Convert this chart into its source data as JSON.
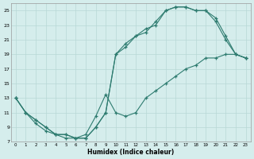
{
  "bg_color": "#d5edec",
  "grid_color": "#b8d8d6",
  "line_color": "#2d7b6f",
  "xlabel": "Humidex (Indice chaleur)",
  "xlim_min": -0.5,
  "xlim_max": 23.5,
  "ylim_min": 7,
  "ylim_max": 26,
  "xticks": [
    0,
    1,
    2,
    3,
    4,
    5,
    6,
    7,
    8,
    9,
    10,
    11,
    12,
    13,
    14,
    15,
    16,
    17,
    18,
    19,
    20,
    21,
    22,
    23
  ],
  "yticks": [
    7,
    9,
    11,
    13,
    15,
    17,
    19,
    21,
    23,
    25
  ],
  "series": [
    {
      "x": [
        0,
        1,
        2,
        3,
        4,
        5,
        6,
        7,
        8,
        9,
        10,
        11,
        12,
        13,
        14,
        15,
        16,
        17,
        18,
        19,
        20,
        21,
        22,
        23
      ],
      "y": [
        13,
        11,
        10,
        9,
        8,
        8,
        7.5,
        7.5,
        9,
        11,
        19,
        20.5,
        21.5,
        22,
        23.5,
        25,
        25.5,
        25.5,
        25,
        25,
        24,
        21.5,
        19,
        18.5
      ]
    },
    {
      "x": [
        0,
        1,
        2,
        3,
        4,
        5,
        6,
        7,
        8,
        9,
        10,
        11,
        12,
        13,
        14,
        15,
        16,
        17,
        18,
        19,
        20,
        21,
        22,
        23
      ],
      "y": [
        13,
        11,
        10,
        9,
        8,
        8,
        7.5,
        7.5,
        9,
        11,
        19,
        20,
        21.5,
        22.5,
        23,
        25,
        25.5,
        25.5,
        25,
        25,
        23.5,
        21,
        19,
        18.5
      ]
    },
    {
      "x": [
        0,
        1,
        2,
        3,
        4,
        5,
        6,
        7,
        8,
        9,
        10,
        11,
        12,
        13,
        14,
        15,
        16,
        17,
        18,
        19,
        20,
        21,
        22,
        23
      ],
      "y": [
        13,
        11,
        9.5,
        8.5,
        8,
        7.5,
        7.5,
        8,
        10.5,
        13.5,
        11,
        10.5,
        11,
        13,
        14,
        15,
        16,
        17,
        17.5,
        18.5,
        18.5,
        19,
        19,
        18.5
      ]
    }
  ]
}
